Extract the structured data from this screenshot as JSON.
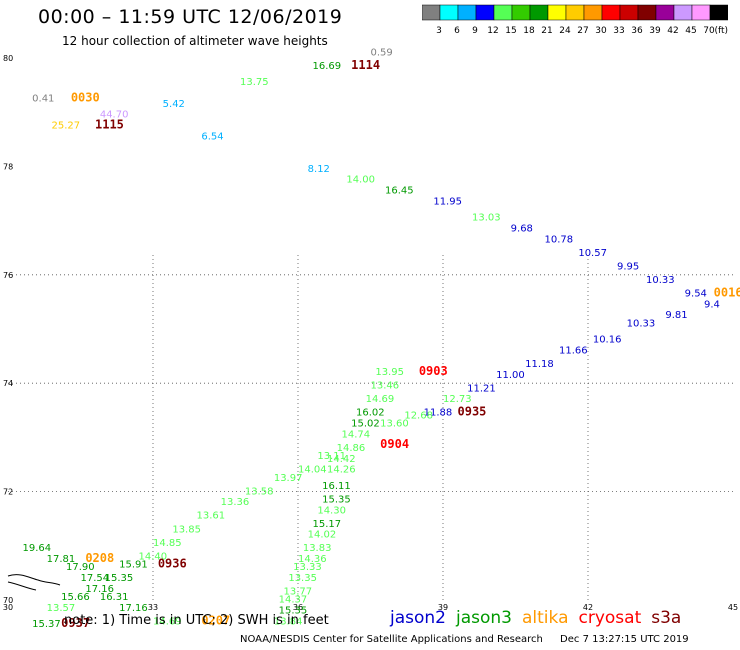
{
  "header": {
    "title": "00:00 – 11:59 UTC 12/06/2019",
    "subtitle": "12 hour collection of altimeter wave heights"
  },
  "legend": {
    "colors": [
      "#808080",
      "#00ffff",
      "#00b0ff",
      "#0000ff",
      "#55ff55",
      "#33cc00",
      "#009900",
      "#ffff00",
      "#ffcc00",
      "#ff9900",
      "#ff0000",
      "#cc0000",
      "#800000",
      "#990099",
      "#cc99ff",
      "#ff99ff",
      "#000000"
    ],
    "labels": [
      "3",
      "6",
      "9",
      "12",
      "15",
      "18",
      "21",
      "24",
      "27",
      "30",
      "33",
      "36",
      "39",
      "42",
      "45",
      "70",
      "(ft)"
    ]
  },
  "axes": {
    "x_ticks": [
      "30",
      "33",
      "36",
      "39",
      "42",
      "45"
    ],
    "y_ticks": [
      "80",
      "78",
      "76",
      "74",
      "72",
      "70"
    ]
  },
  "footer": {
    "note": "note: 1) Time is in UTC; 2) SWH is in feet",
    "satellites": [
      {
        "name": "jason2",
        "color": "#0000cc"
      },
      {
        "name": "jason3",
        "color": "#009900"
      },
      {
        "name": "altika",
        "color": "#ff9900"
      },
      {
        "name": "cryosat",
        "color": "#ff0000"
      },
      {
        "name": "s3a",
        "color": "#800000"
      }
    ],
    "credit_org": "NOAA/NESDIS Center for Satellite Applications and Research",
    "credit_time": "Dec  7 13:27:15 UTC 2019"
  },
  "map_data": {
    "extent": {
      "lon": [
        30,
        45
      ],
      "lat": [
        70,
        80
      ]
    },
    "labels": [
      {
        "t": "0.41",
        "lon": 30.5,
        "lat": 79.2,
        "c": "#808080"
      },
      {
        "t": "0030",
        "lon": 31.3,
        "lat": 79.2,
        "c": "#ff9900",
        "big": true
      },
      {
        "t": "44.70",
        "lon": 31.9,
        "lat": 78.9,
        "c": "#cc99ff"
      },
      {
        "t": "25.27",
        "lon": 30.9,
        "lat": 78.7,
        "c": "#ffcc00"
      },
      {
        "t": "1115",
        "lon": 31.8,
        "lat": 78.7,
        "c": "#800000",
        "big": true
      },
      {
        "t": "5.42",
        "lon": 33.2,
        "lat": 79.1,
        "c": "#00b0ff"
      },
      {
        "t": "6.54",
        "lon": 34.0,
        "lat": 78.5,
        "c": "#00b0ff"
      },
      {
        "t": "13.75",
        "lon": 34.8,
        "lat": 79.5,
        "c": "#55ff55"
      },
      {
        "t": "16.69",
        "lon": 36.3,
        "lat": 79.8,
        "c": "#009900"
      },
      {
        "t": "1114",
        "lon": 37.1,
        "lat": 79.8,
        "c": "#800000",
        "big": true
      },
      {
        "t": "0.59",
        "lon": 37.5,
        "lat": 80.05,
        "c": "#808080"
      },
      {
        "t": "8.12",
        "lon": 36.2,
        "lat": 77.9,
        "c": "#00b0ff"
      },
      {
        "t": "14.00",
        "lon": 37.0,
        "lat": 77.7,
        "c": "#55ff55"
      },
      {
        "t": "16.45",
        "lon": 37.8,
        "lat": 77.5,
        "c": "#009900"
      },
      {
        "t": "11.95",
        "lon": 38.8,
        "lat": 77.3,
        "c": "#0000cc"
      },
      {
        "t": "13.03",
        "lon": 39.6,
        "lat": 77.0,
        "c": "#55ff55"
      },
      {
        "t": "9.68",
        "lon": 40.4,
        "lat": 76.8,
        "c": "#0000cc"
      },
      {
        "t": "10.78",
        "lon": 41.1,
        "lat": 76.6,
        "c": "#0000cc"
      },
      {
        "t": "10.57",
        "lon": 41.8,
        "lat": 76.35,
        "c": "#0000cc"
      },
      {
        "t": "9.95",
        "lon": 42.6,
        "lat": 76.1,
        "c": "#0000cc"
      },
      {
        "t": "10.33",
        "lon": 43.2,
        "lat": 75.85,
        "c": "#0000cc"
      },
      {
        "t": "9.54",
        "lon": 44.0,
        "lat": 75.6,
        "c": "#0000cc"
      },
      {
        "t": "0016",
        "lon": 44.6,
        "lat": 75.6,
        "c": "#ff9900",
        "big": true
      },
      {
        "t": "9.81",
        "lon": 43.6,
        "lat": 75.2,
        "c": "#0000cc"
      },
      {
        "t": "9.4",
        "lon": 44.4,
        "lat": 75.4,
        "c": "#0000cc"
      },
      {
        "t": "10.33",
        "lon": 42.8,
        "lat": 75.05,
        "c": "#0000cc"
      },
      {
        "t": "10.16",
        "lon": 42.1,
        "lat": 74.75,
        "c": "#0000cc"
      },
      {
        "t": "11.66",
        "lon": 41.4,
        "lat": 74.55,
        "c": "#0000cc"
      },
      {
        "t": "11.18",
        "lon": 40.7,
        "lat": 74.3,
        "c": "#0000cc"
      },
      {
        "t": "11.00",
        "lon": 40.1,
        "lat": 74.1,
        "c": "#0000cc"
      },
      {
        "t": "11.21",
        "lon": 39.5,
        "lat": 73.85,
        "c": "#0000cc"
      },
      {
        "t": "12.73",
        "lon": 39.0,
        "lat": 73.65,
        "c": "#55ff55"
      },
      {
        "t": "0935",
        "lon": 39.3,
        "lat": 73.4,
        "c": "#800000",
        "big": true
      },
      {
        "t": "11.88",
        "lon": 38.6,
        "lat": 73.4,
        "c": "#0000cc"
      },
      {
        "t": "13.95",
        "lon": 37.6,
        "lat": 74.15,
        "c": "#55ff55"
      },
      {
        "t": "0903",
        "lon": 38.5,
        "lat": 74.15,
        "c": "#ff0000",
        "big": true
      },
      {
        "t": "13.46",
        "lon": 37.5,
        "lat": 73.9,
        "c": "#55ff55"
      },
      {
        "t": "14.69",
        "lon": 37.4,
        "lat": 73.65,
        "c": "#55ff55"
      },
      {
        "t": "16.02",
        "lon": 37.2,
        "lat": 73.4,
        "c": "#009900"
      },
      {
        "t": "12.68",
        "lon": 38.2,
        "lat": 73.35,
        "c": "#55ff55"
      },
      {
        "t": "13.60",
        "lon": 37.7,
        "lat": 73.2,
        "c": "#55ff55"
      },
      {
        "t": "15.02",
        "lon": 37.1,
        "lat": 73.2,
        "c": "#009900"
      },
      {
        "t": "14.74",
        "lon": 36.9,
        "lat": 73.0,
        "c": "#55ff55"
      },
      {
        "t": "0904",
        "lon": 37.7,
        "lat": 72.8,
        "c": "#ff0000",
        "big": true
      },
      {
        "t": "14.86",
        "lon": 36.8,
        "lat": 72.75,
        "c": "#55ff55"
      },
      {
        "t": "13.11",
        "lon": 36.4,
        "lat": 72.6,
        "c": "#55ff55"
      },
      {
        "t": "14.42",
        "lon": 36.6,
        "lat": 72.55,
        "c": "#55ff55"
      },
      {
        "t": "14.04",
        "lon": 36.0,
        "lat": 72.35,
        "c": "#55ff55"
      },
      {
        "t": "14.26",
        "lon": 36.6,
        "lat": 72.35,
        "c": "#55ff55"
      },
      {
        "t": "13.97",
        "lon": 35.5,
        "lat": 72.2,
        "c": "#55ff55"
      },
      {
        "t": "16.11",
        "lon": 36.5,
        "lat": 72.05,
        "c": "#009900"
      },
      {
        "t": "13.58",
        "lon": 34.9,
        "lat": 71.95,
        "c": "#55ff55"
      },
      {
        "t": "15.35",
        "lon": 36.5,
        "lat": 71.8,
        "c": "#009900"
      },
      {
        "t": "13.36",
        "lon": 34.4,
        "lat": 71.75,
        "c": "#55ff55"
      },
      {
        "t": "14.30",
        "lon": 36.4,
        "lat": 71.6,
        "c": "#55ff55"
      },
      {
        "t": "13.61",
        "lon": 33.9,
        "lat": 71.5,
        "c": "#55ff55"
      },
      {
        "t": "15.17",
        "lon": 36.3,
        "lat": 71.35,
        "c": "#009900"
      },
      {
        "t": "13.85",
        "lon": 33.4,
        "lat": 71.25,
        "c": "#55ff55"
      },
      {
        "t": "14.02",
        "lon": 36.2,
        "lat": 71.15,
        "c": "#55ff55"
      },
      {
        "t": "14.85",
        "lon": 33.0,
        "lat": 71.0,
        "c": "#55ff55"
      },
      {
        "t": "13.83",
        "lon": 36.1,
        "lat": 70.9,
        "c": "#55ff55"
      },
      {
        "t": "14.40",
        "lon": 32.7,
        "lat": 70.75,
        "c": "#55ff55"
      },
      {
        "t": "14.36",
        "lon": 36.0,
        "lat": 70.7,
        "c": "#55ff55"
      },
      {
        "t": "0936",
        "lon": 33.1,
        "lat": 70.6,
        "c": "#800000",
        "big": true
      },
      {
        "t": "15.91",
        "lon": 32.3,
        "lat": 70.6,
        "c": "#009900"
      },
      {
        "t": "13.33",
        "lon": 35.9,
        "lat": 70.55,
        "c": "#55ff55"
      },
      {
        "t": "19.64",
        "lon": 30.3,
        "lat": 70.9,
        "c": "#009900"
      },
      {
        "t": "17.81",
        "lon": 30.8,
        "lat": 70.7,
        "c": "#009900"
      },
      {
        "t": "0208",
        "lon": 31.6,
        "lat": 70.7,
        "c": "#ff9900",
        "big": true
      },
      {
        "t": "17.90",
        "lon": 31.2,
        "lat": 70.55,
        "c": "#009900"
      },
      {
        "t": "17.54",
        "lon": 31.5,
        "lat": 70.35,
        "c": "#009900"
      },
      {
        "t": "15.35",
        "lon": 32.0,
        "lat": 70.35,
        "c": "#009900"
      },
      {
        "t": "13.35",
        "lon": 35.8,
        "lat": 70.35,
        "c": "#55ff55"
      },
      {
        "t": "17.16",
        "lon": 31.6,
        "lat": 70.15,
        "c": "#009900"
      },
      {
        "t": "15.66",
        "lon": 31.1,
        "lat": 70.0,
        "c": "#009900"
      },
      {
        "t": "16.31",
        "lon": 31.9,
        "lat": 70.0,
        "c": "#009900"
      },
      {
        "t": "13.77",
        "lon": 35.7,
        "lat": 70.1,
        "c": "#55ff55"
      },
      {
        "t": "14.37",
        "lon": 35.6,
        "lat": 69.95,
        "c": "#55ff55"
      },
      {
        "t": "17.16",
        "lon": 32.3,
        "lat": 69.8,
        "c": "#009900"
      },
      {
        "t": "13.57",
        "lon": 30.8,
        "lat": 69.8,
        "c": "#55ff55"
      },
      {
        "t": "15.35",
        "lon": 35.6,
        "lat": 69.75,
        "c": "#009900"
      },
      {
        "t": "14.69",
        "lon": 33.0,
        "lat": 69.55,
        "c": "#55ff55"
      },
      {
        "t": "0207",
        "lon": 34.0,
        "lat": 69.55,
        "c": "#ff9900",
        "big": true
      },
      {
        "t": "13.84",
        "lon": 35.5,
        "lat": 69.55,
        "c": "#55ff55"
      },
      {
        "t": "15.37",
        "lon": 30.5,
        "lat": 69.5,
        "c": "#009900"
      },
      {
        "t": "0937",
        "lon": 31.1,
        "lat": 69.5,
        "c": "#800000",
        "big": true
      }
    ]
  }
}
